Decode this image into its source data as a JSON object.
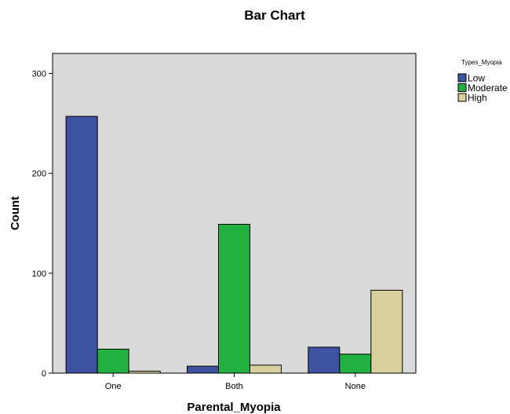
{
  "chart_data": {
    "type": "bar",
    "title": "Bar Chart",
    "xlabel": "Parental_Myopia",
    "ylabel": "Count",
    "categories": [
      "One",
      "Both",
      "None"
    ],
    "ylim": [
      0,
      320
    ],
    "yticks": [
      0,
      100,
      200,
      300
    ],
    "grid": false,
    "legend": {
      "title": "Types_Myopia",
      "placement": "right"
    },
    "series": [
      {
        "name": "Low",
        "color": "#3d52a1",
        "values": [
          257,
          7,
          26
        ]
      },
      {
        "name": "Moderate",
        "color": "#22b041",
        "values": [
          24,
          149,
          19
        ]
      },
      {
        "name": "High",
        "color": "#d8cf9c",
        "values": [
          2,
          8,
          83
        ]
      }
    ],
    "plot_background": "#d9d9d9"
  }
}
